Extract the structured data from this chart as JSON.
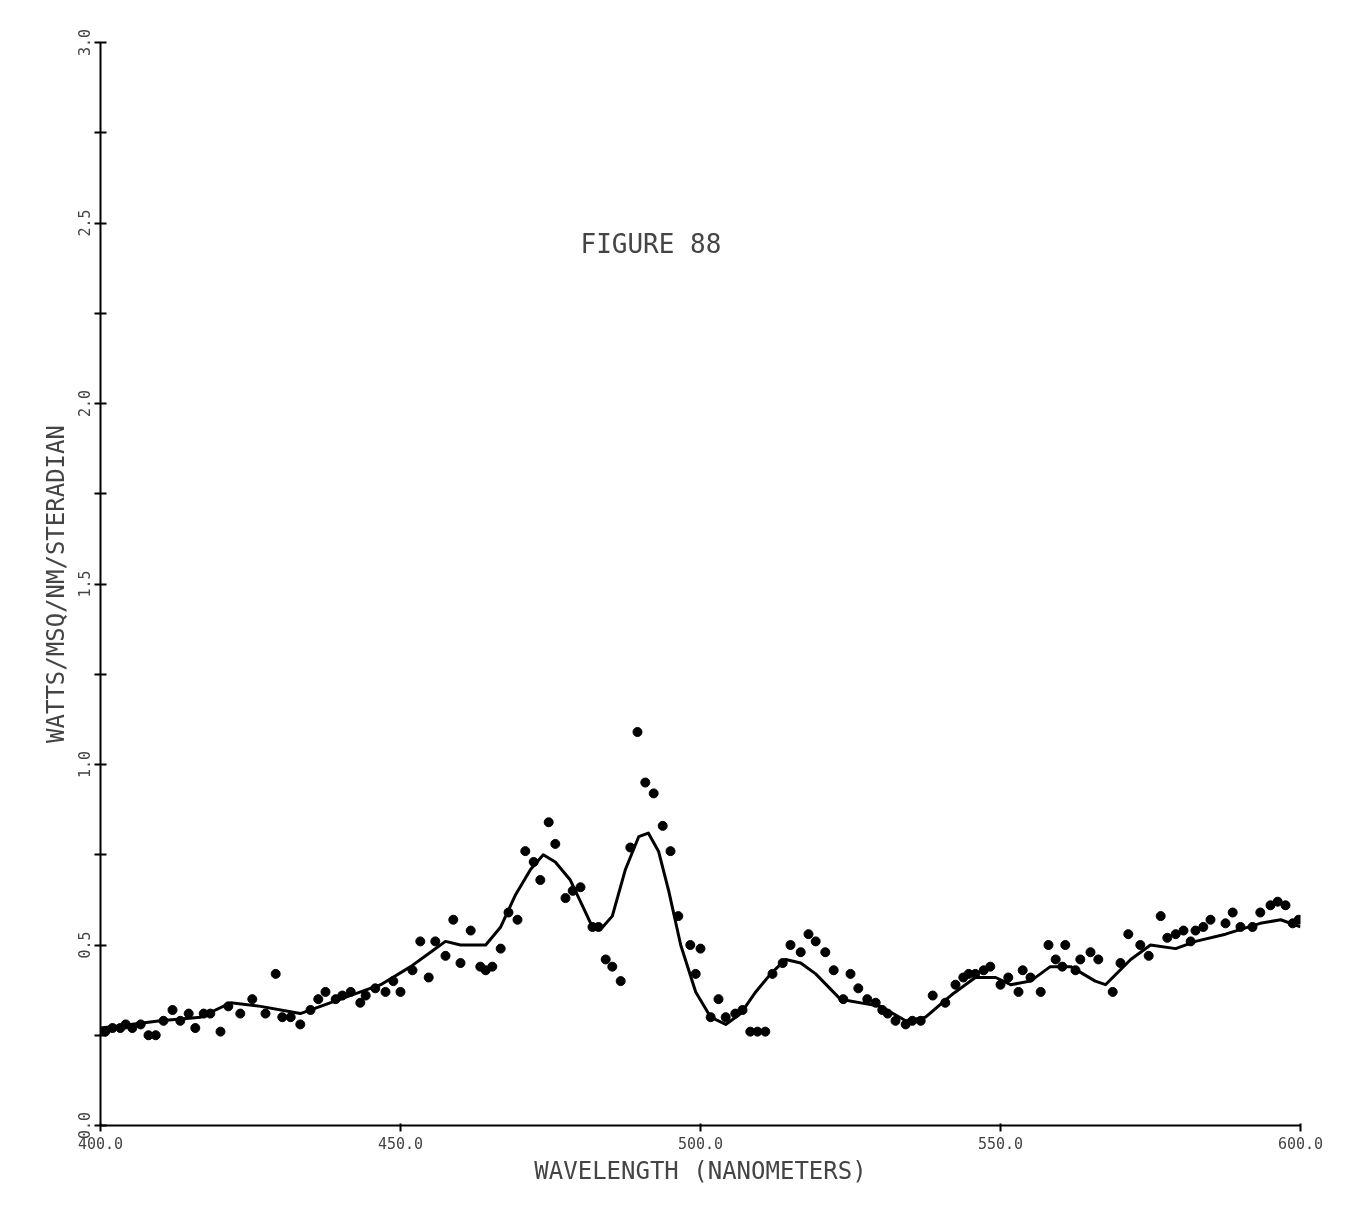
{
  "chart_data": {
    "type": "scatter",
    "xlabel": "WAVELENGTH (NANOMETERS)",
    "ylabel": "WATTS/MSQ/NM/STERADIAN",
    "annotations": [
      "FIGURE 88"
    ],
    "xlim": [
      400,
      600
    ],
    "ylim": [
      0,
      3
    ],
    "xticks": [
      {
        "value": 400,
        "label": "400.0"
      },
      {
        "value": 450,
        "label": "450.0"
      },
      {
        "value": 500,
        "label": "500.0"
      },
      {
        "value": 550,
        "label": "550.0"
      },
      {
        "value": 600,
        "label": "600.0"
      }
    ],
    "yticks": [
      {
        "value": 0,
        "label": "0.0"
      },
      {
        "value": 0.25,
        "label": null
      },
      {
        "value": 0.5,
        "label": "0.5"
      },
      {
        "value": 0.75,
        "label": null
      },
      {
        "value": 1.0,
        "label": "1.0"
      },
      {
        "value": 1.25,
        "label": null
      },
      {
        "value": 1.5,
        "label": "1.5"
      },
      {
        "value": 1.75,
        "label": null
      },
      {
        "value": 2.0,
        "label": "2.0"
      },
      {
        "value": 2.25,
        "label": null
      },
      {
        "value": 2.5,
        "label": "2.5"
      },
      {
        "value": 2.75,
        "label": null
      },
      {
        "value": 3.0,
        "label": "3.0"
      }
    ],
    "grid": false,
    "series": [
      {
        "marker": "circle",
        "color": "#000000",
        "x": [
          400.8,
          402,
          403.3,
          404.2,
          405.3,
          406.7,
          408,
          409.2,
          410.5,
          412,
          413.3,
          414.7,
          415.8,
          417.2,
          418.3,
          420,
          421.3,
          423.3,
          425.3,
          427.5,
          429.2,
          430.3,
          431.7,
          433.3,
          435,
          436.3,
          437.5,
          439.2,
          440.3,
          441.7,
          443.3,
          444.2,
          445.8,
          447.5,
          448.8,
          450,
          452,
          453.3,
          454.7,
          455.8,
          457.5,
          458.8,
          460,
          461.7,
          463.3,
          464.2,
          465.3,
          466.7,
          468,
          469.5,
          470.8,
          472.2,
          473.3,
          474.7,
          475.8,
          477.5,
          478.7,
          480,
          482,
          483,
          484.2,
          485.3,
          486.7,
          488.3,
          489.5,
          490.8,
          492.2,
          493.7,
          495,
          496.3,
          498.3,
          499.2,
          500,
          501.7,
          503,
          504.2,
          505.8,
          507,
          508.3,
          509.5,
          510.8,
          512,
          513.7,
          515,
          516.7,
          518,
          519.2,
          520.8,
          522.2,
          523.8,
          525,
          526.3,
          527.8,
          529.2,
          530.3,
          531.2,
          532.5,
          534.2,
          535.3,
          536.7,
          538.7,
          540.8,
          542.5,
          543.8,
          544.7,
          545.8,
          547.2,
          548.3,
          550,
          551.3,
          553,
          553.7,
          555,
          556.7,
          558,
          559.2,
          560.3,
          560.8,
          562.5,
          563.3,
          565,
          566.3,
          568.7,
          570,
          571.3,
          573.3,
          574.7,
          576.7,
          577.8,
          579.2,
          580.5,
          581.7,
          582.5,
          583.8,
          585,
          587.5,
          588.7,
          590,
          592,
          593.3,
          595,
          596.2,
          597.5,
          598.7,
          599.7
        ],
        "values": [
          0.26,
          0.27,
          0.27,
          0.28,
          0.27,
          0.28,
          0.25,
          0.25,
          0.29,
          0.32,
          0.29,
          0.31,
          0.27,
          0.31,
          0.31,
          0.26,
          0.33,
          0.31,
          0.35,
          0.31,
          0.42,
          0.3,
          0.3,
          0.28,
          0.32,
          0.35,
          0.37,
          0.35,
          0.36,
          0.37,
          0.34,
          0.36,
          0.38,
          0.37,
          0.4,
          0.37,
          0.43,
          0.51,
          0.41,
          0.51,
          0.47,
          0.57,
          0.45,
          0.54,
          0.44,
          0.43,
          0.44,
          0.49,
          0.59,
          0.57,
          0.76,
          0.73,
          0.68,
          0.84,
          0.78,
          0.63,
          0.65,
          0.66,
          0.55,
          0.55,
          0.46,
          0.44,
          0.4,
          0.77,
          1.09,
          0.95,
          0.92,
          0.83,
          0.76,
          0.58,
          0.5,
          0.42,
          0.49,
          0.3,
          0.35,
          0.3,
          0.31,
          0.32,
          0.26,
          0.26,
          0.26,
          0.42,
          0.45,
          0.5,
          0.48,
          0.53,
          0.51,
          0.48,
          0.43,
          0.35,
          0.42,
          0.38,
          0.35,
          0.34,
          0.32,
          0.31,
          0.29,
          0.28,
          0.29,
          0.29,
          0.36,
          0.34,
          0.39,
          0.41,
          0.42,
          0.42,
          0.43,
          0.44,
          0.39,
          0.41,
          0.37,
          0.43,
          0.41,
          0.37,
          0.5,
          0.46,
          0.44,
          0.5,
          0.43,
          0.46,
          0.48,
          0.46,
          0.37,
          0.45,
          0.53,
          0.5,
          0.47,
          0.58,
          0.52,
          0.53,
          0.54,
          0.51,
          0.54,
          0.55,
          0.57,
          0.56,
          0.59,
          0.55,
          0.55,
          0.59,
          0.61,
          0.62,
          0.61,
          0.56,
          0.57
        ]
      },
      {
        "type": "line",
        "line_style": "solid",
        "color": "#000000",
        "x": [
          400,
          405,
          410,
          416.7,
          421.7,
          426.7,
          433.3,
          440,
          446.7,
          451.7,
          455,
          457.5,
          460,
          464.2,
          466.7,
          469.2,
          471.7,
          473.8,
          475.8,
          478.3,
          480,
          481.7,
          483.7,
          485.3,
          487.5,
          489.7,
          491.3,
          493,
          494.7,
          496.7,
          499.2,
          501.7,
          504.2,
          506.7,
          509.2,
          511.7,
          514.2,
          516.7,
          519.2,
          523.3,
          530,
          534.2,
          537.5,
          541.7,
          545.8,
          549.2,
          551.7,
          555,
          558.3,
          561.7,
          565.8,
          567.5,
          571.7,
          575,
          579.2,
          582.5,
          587.5,
          593.3,
          596.7,
          600
        ],
        "values": [
          0.27,
          0.28,
          0.29,
          0.3,
          0.34,
          0.33,
          0.31,
          0.35,
          0.39,
          0.44,
          0.48,
          0.51,
          0.5,
          0.5,
          0.55,
          0.64,
          0.71,
          0.75,
          0.73,
          0.68,
          0.62,
          0.56,
          0.55,
          0.58,
          0.71,
          0.8,
          0.81,
          0.76,
          0.65,
          0.5,
          0.37,
          0.3,
          0.28,
          0.31,
          0.37,
          0.42,
          0.46,
          0.45,
          0.42,
          0.35,
          0.33,
          0.29,
          0.3,
          0.36,
          0.41,
          0.41,
          0.39,
          0.4,
          0.44,
          0.44,
          0.4,
          0.39,
          0.46,
          0.5,
          0.49,
          0.51,
          0.53,
          0.56,
          0.57,
          0.55
        ]
      }
    ]
  }
}
